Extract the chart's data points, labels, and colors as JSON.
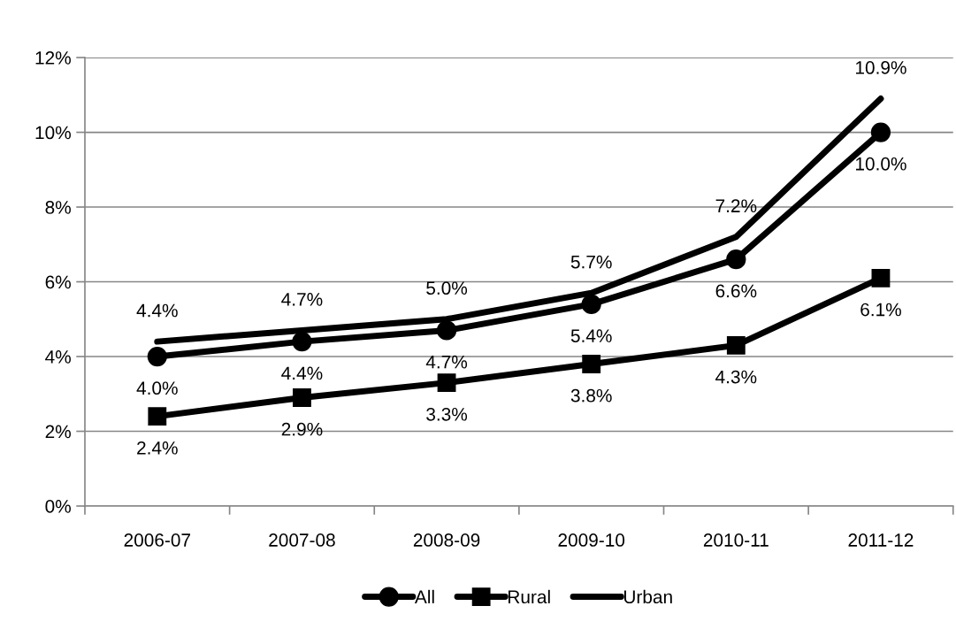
{
  "chart_data": {
    "type": "line",
    "categories": [
      "2006-07",
      "2007-08",
      "2008-09",
      "2009-10",
      "2010-11",
      "2011-12"
    ],
    "series": [
      {
        "name": "All",
        "color": "#000000",
        "marker": "circle",
        "values": [
          4.0,
          4.4,
          4.7,
          5.4,
          6.6,
          10.0
        ],
        "value_labels": [
          "4.0%",
          "4.4%",
          "4.7%",
          "5.4%",
          "6.6%",
          "10.0%"
        ]
      },
      {
        "name": "Rural",
        "color": "#000000",
        "marker": "square",
        "values": [
          2.4,
          2.9,
          3.3,
          3.8,
          4.3,
          6.1
        ],
        "value_labels": [
          "2.4%",
          "2.9%",
          "3.3%",
          "3.8%",
          "4.3%",
          "6.1%"
        ]
      },
      {
        "name": "Urban",
        "color": "#000000",
        "marker": "none",
        "values": [
          4.4,
          4.7,
          5.0,
          5.7,
          7.2,
          10.9
        ],
        "value_labels": [
          "4.4%",
          "4.7%",
          "5.0%",
          "5.7%",
          "7.2%",
          "10.9%"
        ]
      }
    ],
    "ylim": [
      0,
      12
    ],
    "yticks": [
      {
        "value": 0,
        "label": "0%"
      },
      {
        "value": 2,
        "label": "2%"
      },
      {
        "value": 4,
        "label": "4%"
      },
      {
        "value": 6,
        "label": "6%"
      },
      {
        "value": 8,
        "label": "8%"
      },
      {
        "value": 10,
        "label": "10%"
      },
      {
        "value": 12,
        "label": "12%"
      }
    ],
    "grid": "y",
    "legend": "bottom",
    "line_style": "solid"
  }
}
